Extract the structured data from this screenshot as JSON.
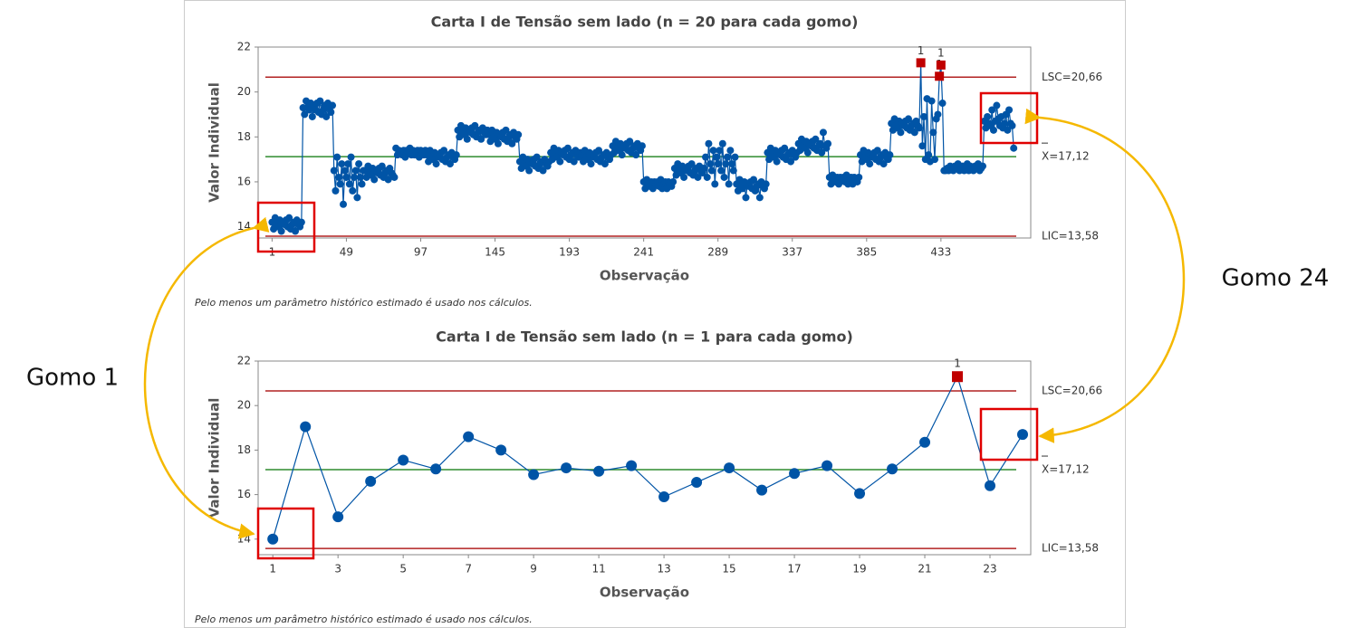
{
  "chart_data": [
    {
      "type": "line",
      "title": "Carta I de Tensão sem lado (n = 20 para cada gomo)",
      "x_label": "Observação",
      "y_label": "Valor Individual",
      "note": "Pelo menos um parâmetro histórico estimado é usado nos cálculos.",
      "flag_label": "1",
      "x": [
        1,
        2,
        3,
        4,
        5,
        6,
        7,
        8,
        9,
        10,
        11,
        12,
        13,
        14,
        15,
        16,
        17,
        18,
        19,
        20,
        21,
        22,
        23,
        24,
        25,
        26,
        27,
        28,
        29,
        30,
        31,
        32,
        33,
        34,
        35,
        36,
        37,
        38,
        39,
        40,
        41,
        42,
        43,
        44,
        45,
        46,
        47,
        48,
        49,
        50,
        51,
        52,
        53,
        54,
        55,
        56,
        57,
        58,
        59,
        60,
        61,
        62,
        63,
        64,
        65,
        66,
        67,
        68,
        69,
        70,
        71,
        72,
        73,
        74,
        75,
        76,
        77,
        78,
        79,
        80,
        81,
        82,
        83,
        84,
        85,
        86,
        87,
        88,
        89,
        90,
        91,
        92,
        93,
        94,
        95,
        96,
        97,
        98,
        99,
        100,
        101,
        102,
        103,
        104,
        105,
        106,
        107,
        108,
        109,
        110,
        111,
        112,
        113,
        114,
        115,
        116,
        117,
        118,
        119,
        120,
        121,
        122,
        123,
        124,
        125,
        126,
        127,
        128,
        129,
        130,
        131,
        132,
        133,
        134,
        135,
        136,
        137,
        138,
        139,
        140,
        141,
        142,
        143,
        144,
        145,
        146,
        147,
        148,
        149,
        150,
        151,
        152,
        153,
        154,
        155,
        156,
        157,
        158,
        159,
        160,
        161,
        162,
        163,
        164,
        165,
        166,
        167,
        168,
        169,
        170,
        171,
        172,
        173,
        174,
        175,
        176,
        177,
        178,
        179,
        180,
        181,
        182,
        183,
        184,
        185,
        186,
        187,
        188,
        189,
        190,
        191,
        192,
        193,
        194,
        195,
        196,
        197,
        198,
        199,
        200,
        201,
        202,
        203,
        204,
        205,
        206,
        207,
        208,
        209,
        210,
        211,
        212,
        213,
        214,
        215,
        216,
        217,
        218,
        219,
        220,
        221,
        222,
        223,
        224,
        225,
        226,
        227,
        228,
        229,
        230,
        231,
        232,
        233,
        234,
        235,
        236,
        237,
        238,
        239,
        240,
        241,
        242,
        243,
        244,
        245,
        246,
        247,
        248,
        249,
        250,
        251,
        252,
        253,
        254,
        255,
        256,
        257,
        258,
        259,
        260,
        261,
        262,
        263,
        264,
        265,
        266,
        267,
        268,
        269,
        270,
        271,
        272,
        273,
        274,
        275,
        276,
        277,
        278,
        279,
        280,
        281,
        282,
        283,
        284,
        285,
        286,
        287,
        288,
        289,
        290,
        291,
        292,
        293,
        294,
        295,
        296,
        297,
        298,
        299,
        300,
        301,
        302,
        303,
        304,
        305,
        306,
        307,
        308,
        309,
        310,
        311,
        312,
        313,
        314,
        315,
        316,
        317,
        318,
        319,
        320,
        321,
        322,
        323,
        324,
        325,
        326,
        327,
        328,
        329,
        330,
        331,
        332,
        333,
        334,
        335,
        336,
        337,
        338,
        339,
        340,
        341,
        342,
        343,
        344,
        345,
        346,
        347,
        348,
        349,
        350,
        351,
        352,
        353,
        354,
        355,
        356,
        357,
        358,
        359,
        360,
        361,
        362,
        363,
        364,
        365,
        366,
        367,
        368,
        369,
        370,
        371,
        372,
        373,
        374,
        375,
        376,
        377,
        378,
        379,
        380,
        381,
        382,
        383,
        384,
        385,
        386,
        387,
        388,
        389,
        390,
        391,
        392,
        393,
        394,
        395,
        396,
        397,
        398,
        399,
        400,
        401,
        402,
        403,
        404,
        405,
        406,
        407,
        408,
        409,
        410,
        411,
        412,
        413,
        414,
        415,
        416,
        417,
        418,
        419,
        420,
        421,
        422,
        423,
        424,
        425,
        426,
        427,
        428,
        429,
        430,
        431,
        432,
        433,
        434,
        435,
        436,
        437,
        438,
        439,
        440,
        441,
        442,
        443,
        444,
        445,
        446,
        447,
        448,
        449,
        450,
        451,
        452,
        453,
        454,
        455,
        456,
        457,
        458,
        459,
        460,
        461,
        462,
        463,
        464,
        465,
        466,
        467,
        468,
        469,
        470,
        471,
        472,
        473,
        474,
        475,
        476,
        477,
        478,
        479,
        480
      ],
      "series": [
        {
          "color": "#0054a6",
          "values": [
            14.2,
            13.9,
            14.4,
            14.1,
            14.0,
            14.3,
            13.8,
            14.2,
            14.1,
            14.3,
            14.0,
            14.4,
            13.9,
            14.1,
            14.2,
            13.8,
            14.3,
            14.1,
            14.0,
            14.2,
            19.3,
            19.0,
            19.6,
            19.3,
            19.2,
            19.5,
            18.9,
            19.3,
            19.2,
            19.5,
            19.1,
            19.6,
            19.0,
            19.2,
            19.4,
            18.9,
            19.5,
            19.3,
            19.1,
            19.4,
            16.5,
            15.6,
            17.1,
            16.2,
            15.9,
            16.8,
            15.0,
            16.5,
            16.2,
            16.8,
            15.9,
            17.1,
            15.6,
            16.2,
            16.5,
            15.3,
            16.8,
            16.2,
            15.9,
            16.5,
            16.5,
            16.2,
            16.7,
            16.4,
            16.3,
            16.6,
            16.1,
            16.5,
            16.4,
            16.6,
            16.3,
            16.7,
            16.2,
            16.4,
            16.5,
            16.1,
            16.6,
            16.4,
            16.3,
            16.2,
            17.5,
            17.2,
            17.4,
            17.3,
            17.2,
            17.4,
            17.1,
            17.4,
            17.3,
            17.5,
            17.2,
            17.4,
            17.2,
            17.3,
            17.4,
            17.1,
            17.4,
            17.3,
            17.2,
            17.4,
            17.2,
            16.9,
            17.4,
            17.1,
            17.0,
            17.3,
            16.8,
            17.2,
            17.1,
            17.3,
            17.0,
            17.4,
            16.9,
            17.1,
            17.2,
            16.8,
            17.3,
            17.1,
            17.0,
            17.2,
            18.3,
            18.0,
            18.5,
            18.2,
            18.1,
            18.4,
            17.9,
            18.3,
            18.2,
            18.4,
            18.1,
            18.5,
            18.0,
            18.2,
            18.3,
            17.9,
            18.4,
            18.2,
            18.1,
            18.3,
            18.1,
            17.8,
            18.3,
            18.0,
            17.9,
            18.2,
            17.7,
            18.1,
            18.0,
            18.2,
            17.9,
            18.3,
            17.8,
            18.0,
            18.1,
            17.7,
            18.2,
            18.0,
            17.9,
            18.1,
            16.9,
            16.6,
            17.1,
            16.8,
            16.7,
            17.0,
            16.5,
            16.9,
            16.8,
            17.0,
            16.7,
            17.1,
            16.6,
            16.8,
            16.9,
            16.5,
            17.0,
            16.8,
            16.7,
            16.9,
            17.3,
            17.0,
            17.5,
            17.2,
            17.1,
            17.4,
            16.9,
            17.3,
            17.2,
            17.4,
            17.1,
            17.5,
            17.0,
            17.2,
            17.3,
            16.9,
            17.4,
            17.2,
            17.1,
            17.3,
            17.2,
            16.9,
            17.4,
            17.1,
            17.0,
            17.3,
            16.8,
            17.2,
            17.1,
            17.3,
            17.0,
            17.4,
            16.9,
            17.1,
            17.2,
            16.8,
            17.3,
            17.1,
            17.0,
            17.2,
            17.6,
            17.3,
            17.8,
            17.5,
            17.4,
            17.7,
            17.2,
            17.6,
            17.5,
            17.7,
            17.4,
            17.8,
            17.3,
            17.5,
            17.6,
            17.2,
            17.7,
            17.5,
            17.4,
            17.6,
            16.0,
            15.7,
            16.1,
            15.9,
            15.8,
            16.0,
            15.7,
            16.0,
            15.9,
            16.0,
            15.8,
            16.1,
            15.7,
            15.9,
            16.0,
            15.7,
            16.0,
            15.9,
            15.8,
            16.0,
            16.6,
            16.3,
            16.8,
            16.5,
            16.4,
            16.7,
            16.2,
            16.6,
            16.5,
            16.7,
            16.4,
            16.8,
            16.3,
            16.5,
            16.6,
            16.2,
            16.7,
            16.5,
            16.4,
            16.6,
            17.1,
            16.2,
            17.7,
            16.8,
            16.5,
            17.4,
            15.9,
            17.1,
            16.8,
            17.4,
            16.5,
            17.7,
            16.2,
            16.8,
            17.1,
            15.9,
            17.4,
            16.8,
            16.5,
            17.1,
            15.9,
            15.6,
            16.1,
            15.8,
            15.7,
            16.0,
            15.3,
            15.9,
            15.8,
            16.0,
            15.7,
            16.1,
            15.6,
            15.8,
            15.9,
            15.3,
            16.0,
            15.8,
            15.7,
            15.9,
            17.3,
            17.0,
            17.5,
            17.2,
            17.1,
            17.4,
            16.9,
            17.3,
            17.2,
            17.4,
            17.1,
            17.5,
            17.0,
            17.2,
            17.3,
            16.9,
            17.4,
            17.2,
            17.1,
            17.3,
            17.7,
            17.4,
            17.9,
            17.6,
            17.5,
            17.8,
            17.3,
            17.7,
            17.6,
            17.8,
            17.5,
            17.9,
            17.4,
            17.6,
            17.7,
            17.3,
            18.2,
            17.6,
            17.5,
            17.7,
            16.2,
            15.9,
            16.3,
            16.1,
            16.0,
            16.2,
            15.9,
            16.2,
            16.1,
            16.2,
            16.0,
            16.3,
            15.9,
            16.1,
            16.2,
            15.9,
            16.2,
            16.1,
            16.0,
            16.2,
            17.2,
            16.9,
            17.4,
            17.1,
            17.0,
            17.3,
            16.8,
            17.2,
            17.1,
            17.3,
            17.0,
            17.4,
            16.9,
            17.1,
            17.2,
            16.8,
            17.3,
            17.1,
            17.0,
            17.2,
            18.6,
            18.3,
            18.8,
            18.5,
            18.4,
            18.7,
            18.2,
            18.6,
            18.5,
            18.7,
            18.4,
            18.8,
            18.3,
            18.5,
            18.6,
            18.2,
            18.7,
            18.5,
            18.4,
            21.3,
            17.6,
            18.9,
            17.0,
            19.7,
            17.2,
            16.9,
            19.6,
            18.2,
            17.0,
            18.8,
            19.0,
            20.7,
            21.2,
            19.5,
            16.5,
            16.5,
            16.6,
            16.5,
            16.7,
            16.6,
            16.5,
            16.7,
            16.6,
            16.8,
            16.5,
            16.6,
            16.7,
            16.5,
            16.6,
            16.8,
            16.5,
            16.7,
            16.6,
            16.5,
            16.7,
            16.6,
            16.8,
            16.5,
            16.6,
            16.7,
            18.7,
            18.4,
            18.9,
            18.6,
            18.5,
            19.2,
            18.3,
            18.7,
            19.4,
            18.8,
            18.5,
            18.9,
            18.4,
            18.6,
            19.0,
            18.3,
            19.2,
            18.6,
            18.5,
            17.5
          ]
        }
      ],
      "limits": [
        {
          "value": 20.66,
          "label": "LSC=20,66",
          "color": "#b22222"
        },
        {
          "value": 17.12,
          "label": "X=17,12",
          "color": "#2e8b2e",
          "overline": true
        },
        {
          "value": 13.58,
          "label": "LIC=13,58",
          "color": "#b22222"
        }
      ],
      "flag_color": "#c00000",
      "xlim": [
        -8,
        491
      ],
      "ylim": [
        13.5,
        22
      ],
      "xticks": [
        1,
        49,
        97,
        145,
        193,
        241,
        289,
        337,
        385,
        433
      ],
      "yticks": [
        14,
        16,
        18,
        20,
        22
      ]
    },
    {
      "type": "line",
      "title": "Carta I de Tensão sem lado (n = 1 para cada gomo)",
      "x_label": "Observação",
      "y_label": "Valor Individual",
      "note": "Pelo menos um parâmetro histórico estimado é usado nos cálculos.",
      "flag_label": "1",
      "x": [
        1,
        2,
        3,
        4,
        5,
        6,
        7,
        8,
        9,
        10,
        11,
        12,
        13,
        14,
        15,
        16,
        17,
        18,
        19,
        20,
        21,
        22,
        23,
        24
      ],
      "series": [
        {
          "color": "#0054a6",
          "values": [
            14.0,
            19.05,
            15.0,
            16.6,
            17.55,
            17.15,
            18.6,
            18.0,
            16.9,
            17.2,
            17.05,
            17.3,
            15.9,
            16.55,
            17.2,
            16.2,
            16.95,
            17.3,
            16.05,
            17.15,
            18.35,
            21.3,
            16.4,
            18.7
          ]
        }
      ],
      "limits": [
        {
          "value": 20.66,
          "label": "LSC=20,66",
          "color": "#b22222"
        },
        {
          "value": 17.12,
          "label": "X=17,12",
          "color": "#2e8b2e",
          "overline": true
        },
        {
          "value": 13.58,
          "label": "LIC=13,58",
          "color": "#b22222"
        }
      ],
      "flag_color": "#c00000",
      "xlim": [
        0.55,
        24.25
      ],
      "ylim": [
        13.3,
        22
      ],
      "xticks": [
        1,
        3,
        5,
        7,
        9,
        11,
        13,
        15,
        17,
        19,
        21,
        23
      ],
      "yticks": [
        14,
        16,
        18,
        20,
        22
      ]
    }
  ],
  "annotations": [
    "Gomo 1",
    "Gomo 24"
  ]
}
